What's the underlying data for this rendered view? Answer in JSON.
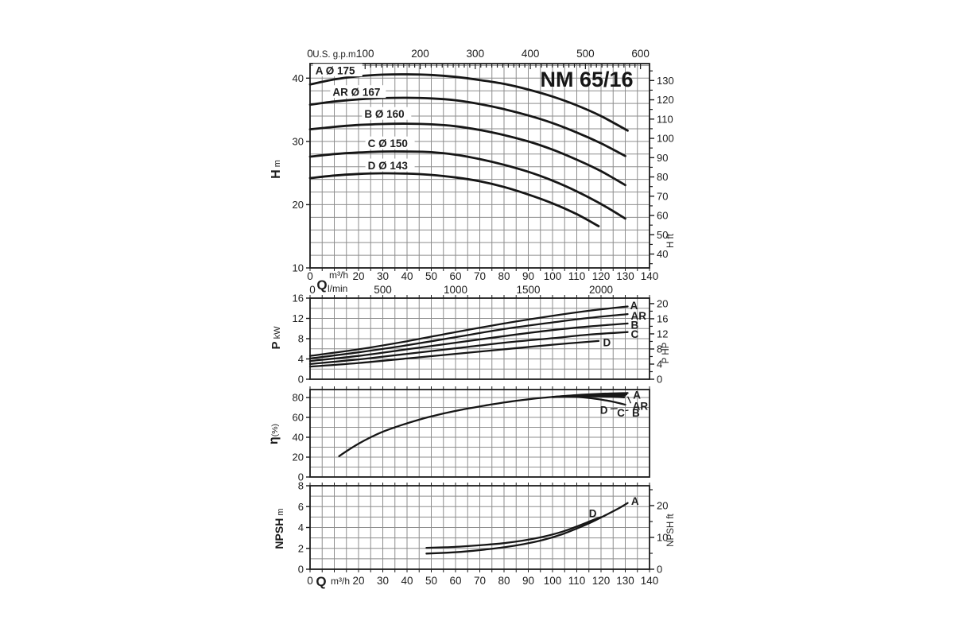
{
  "title": "NM 65/16",
  "colors": {
    "bg": "#ffffff",
    "grid": "#8d8d8d",
    "border": "#1c1c1c",
    "curve": "#161616",
    "text": "#1d1d1d"
  },
  "x_axis": {
    "bottom_label_q": "Q",
    "bottom_label_unit": "m³/h",
    "bottom_ticks": [
      0,
      20,
      30,
      40,
      50,
      60,
      70,
      80,
      90,
      100,
      110,
      120,
      130,
      140
    ],
    "lmin_label": "l/min",
    "lmin_ticks": [
      0,
      500,
      1000,
      1500,
      2000
    ],
    "lmin_to_m3h": 0.06,
    "xlim": [
      0,
      140
    ]
  },
  "chart_data": [
    {
      "id": "head",
      "type": "line",
      "title": "NM 65/16",
      "xlabel": "Q m³/h",
      "ylabel_parts": [
        [
          "H",
          16,
          true
        ],
        [
          " m",
          11,
          false
        ]
      ],
      "xlim": [
        0,
        140
      ],
      "ylim": [
        10,
        42.3
      ],
      "xgrid": 5,
      "ygrid": 2,
      "yticks": [
        10,
        20,
        30,
        40
      ],
      "lw": 2.8,
      "ticks_bottom": true,
      "top_axis": {
        "label": "U.S. g.p.m.",
        "ticks": [
          0,
          100,
          200,
          300,
          400,
          500,
          600
        ],
        "minor_step": 10,
        "max": 600,
        "factor": 0.227125
      },
      "right_axis": {
        "label": "H ft",
        "factor": 0.3048,
        "majors": [
          40,
          50,
          60,
          70,
          80,
          90,
          100,
          110,
          120,
          130
        ],
        "minors": [
          35,
          45,
          55,
          65,
          75,
          85,
          95,
          105,
          115,
          125,
          135
        ]
      },
      "series": [
        {
          "name": "A",
          "points": [
            [
              0,
              39.0
            ],
            [
              10,
              39.8
            ],
            [
              20,
              40.3
            ],
            [
              30,
              40.55
            ],
            [
              40,
              40.6
            ],
            [
              50,
              40.5
            ],
            [
              60,
              40.2
            ],
            [
              70,
              39.7
            ],
            [
              80,
              39.1
            ],
            [
              90,
              38.2
            ],
            [
              100,
              37.1
            ],
            [
              110,
              35.7
            ],
            [
              120,
              34.0
            ],
            [
              131,
              31.7
            ]
          ]
        },
        {
          "name": "AR",
          "points": [
            [
              0,
              35.8
            ],
            [
              10,
              36.3
            ],
            [
              20,
              36.65
            ],
            [
              30,
              36.85
            ],
            [
              40,
              36.9
            ],
            [
              50,
              36.8
            ],
            [
              60,
              36.5
            ],
            [
              70,
              35.9
            ],
            [
              80,
              35.1
            ],
            [
              90,
              34.1
            ],
            [
              100,
              32.9
            ],
            [
              110,
              31.4
            ],
            [
              120,
              29.7
            ],
            [
              130,
              27.7
            ]
          ]
        },
        {
          "name": "B",
          "points": [
            [
              0,
              31.9
            ],
            [
              10,
              32.3
            ],
            [
              20,
              32.6
            ],
            [
              30,
              32.75
            ],
            [
              40,
              32.8
            ],
            [
              50,
              32.7
            ],
            [
              60,
              32.4
            ],
            [
              70,
              31.8
            ],
            [
              80,
              31.0
            ],
            [
              90,
              30.0
            ],
            [
              100,
              28.7
            ],
            [
              110,
              27.1
            ],
            [
              120,
              25.3
            ],
            [
              130,
              23.1
            ]
          ]
        },
        {
          "name": "C",
          "points": [
            [
              0,
              27.6
            ],
            [
              10,
              28.0
            ],
            [
              20,
              28.25
            ],
            [
              30,
              28.4
            ],
            [
              40,
              28.4
            ],
            [
              50,
              28.3
            ],
            [
              60,
              27.9
            ],
            [
              70,
              27.2
            ],
            [
              80,
              26.3
            ],
            [
              90,
              25.2
            ],
            [
              100,
              23.8
            ],
            [
              110,
              22.1
            ],
            [
              120,
              20.1
            ],
            [
              130,
              17.8
            ]
          ]
        },
        {
          "name": "D",
          "points": [
            [
              0,
              24.2
            ],
            [
              10,
              24.6
            ],
            [
              20,
              24.85
            ],
            [
              30,
              24.95
            ],
            [
              40,
              24.9
            ],
            [
              50,
              24.7
            ],
            [
              60,
              24.3
            ],
            [
              70,
              23.7
            ],
            [
              80,
              22.8
            ],
            [
              90,
              21.6
            ],
            [
              100,
              20.2
            ],
            [
              110,
              18.5
            ],
            [
              119,
              16.6
            ]
          ]
        }
      ],
      "annotations": [
        {
          "text": "A Ø 175",
          "q": 2.2,
          "v": 41.15,
          "bg": true,
          "w": 62
        },
        {
          "text": "AR Ø 167",
          "q": 9.3,
          "v": 37.75,
          "bg": true,
          "w": 70
        },
        {
          "text": "B Ø 160",
          "q": 22.4,
          "v": 34.3,
          "bg": true,
          "w": 62
        },
        {
          "text": "C Ø 150",
          "q": 23.8,
          "v": 29.65,
          "bg": true,
          "w": 62
        },
        {
          "text": "D Ø 143",
          "q": 23.8,
          "v": 26.15,
          "bg": true,
          "w": 62
        }
      ]
    },
    {
      "id": "power",
      "type": "line",
      "ylabel_parts": [
        [
          "P",
          15,
          true
        ],
        [
          " kW",
          11,
          false
        ]
      ],
      "xlim": [
        0,
        140
      ],
      "ylim": [
        0,
        16
      ],
      "xgrid": 5,
      "ygrid": 2,
      "yticks": [
        0,
        4,
        8,
        12,
        16
      ],
      "lw": 2.3,
      "ticks_top": true,
      "right_axis": {
        "label": "P HP",
        "factor": 0.7457,
        "majors": [
          0,
          4,
          8,
          12,
          16,
          20
        ],
        "minors": [
          2,
          6,
          10,
          14,
          18
        ]
      },
      "series": [
        {
          "name": "A",
          "points": [
            [
              0,
              4.6
            ],
            [
              20,
              5.9
            ],
            [
              40,
              7.5
            ],
            [
              60,
              9.3
            ],
            [
              80,
              11.0
            ],
            [
              100,
              12.5
            ],
            [
              115,
              13.5
            ],
            [
              131,
              14.35
            ]
          ]
        },
        {
          "name": "AR",
          "points": [
            [
              0,
              4.1
            ],
            [
              20,
              5.3
            ],
            [
              40,
              6.7
            ],
            [
              60,
              8.3
            ],
            [
              80,
              9.9
            ],
            [
              100,
              11.2
            ],
            [
              115,
              12.1
            ],
            [
              131,
              12.85
            ]
          ]
        },
        {
          "name": "B",
          "points": [
            [
              0,
              3.6
            ],
            [
              20,
              4.6
            ],
            [
              40,
              5.9
            ],
            [
              60,
              7.2
            ],
            [
              80,
              8.5
            ],
            [
              100,
              9.7
            ],
            [
              115,
              10.4
            ],
            [
              131,
              11.0
            ]
          ]
        },
        {
          "name": "C",
          "points": [
            [
              0,
              3.0
            ],
            [
              20,
              3.9
            ],
            [
              40,
              5.0
            ],
            [
              60,
              6.1
            ],
            [
              80,
              7.2
            ],
            [
              100,
              8.1
            ],
            [
              115,
              8.8
            ],
            [
              131,
              9.3
            ]
          ]
        },
        {
          "name": "D",
          "points": [
            [
              0,
              2.5
            ],
            [
              20,
              3.2
            ],
            [
              40,
              4.1
            ],
            [
              60,
              5.0
            ],
            [
              80,
              5.9
            ],
            [
              100,
              6.8
            ],
            [
              119,
              7.55
            ]
          ]
        }
      ],
      "annotations": [
        {
          "text": "A",
          "q": 132.0,
          "v": 14.5
        },
        {
          "text": "AR",
          "q": 132.3,
          "v": 12.45
        },
        {
          "text": "B",
          "q": 132.3,
          "v": 10.7
        },
        {
          "text": "C",
          "q": 132.3,
          "v": 8.85
        },
        {
          "text": "D",
          "q": 120.8,
          "v": 7.25
        }
      ]
    },
    {
      "id": "eff",
      "type": "line",
      "ylabel_parts": [
        [
          "η",
          16,
          true
        ],
        [
          "(%)",
          10.5,
          false
        ]
      ],
      "xlim": [
        0,
        140
      ],
      "ylim": [
        0,
        88
      ],
      "xgrid": 5,
      "ygrid": 10,
      "yticks": [
        0,
        20,
        40,
        60,
        80
      ],
      "lw": 2.3,
      "ticks_top": true,
      "series": [
        {
          "name": "main",
          "points": [
            [
              12,
              21
            ],
            [
              16,
              27.5
            ],
            [
              20,
              33.5
            ],
            [
              25,
              40
            ],
            [
              30,
              45.5
            ],
            [
              35,
              50
            ],
            [
              40,
              54
            ],
            [
              45,
              57.7
            ],
            [
              50,
              61
            ],
            [
              55,
              63.9
            ],
            [
              60,
              66.5
            ],
            [
              65,
              68.9
            ],
            [
              70,
              71
            ],
            [
              75,
              73.1
            ],
            [
              80,
              75
            ],
            [
              85,
              76.7
            ],
            [
              90,
              78.2
            ],
            [
              95,
              79.5
            ],
            [
              100,
              80.6
            ]
          ]
        },
        {
          "name": "A",
          "points": [
            [
              100,
              80.6
            ],
            [
              108,
              82.1
            ],
            [
              116,
              83.3
            ],
            [
              124,
              84.1
            ],
            [
              131,
              84.5
            ]
          ]
        },
        {
          "name": "AR",
          "points": [
            [
              100,
              80.6
            ],
            [
              108,
              81.9
            ],
            [
              116,
              82.8
            ],
            [
              124,
              83.2
            ],
            [
              130.5,
              83.2
            ]
          ]
        },
        {
          "name": "B",
          "points": [
            [
              100,
              80.5
            ],
            [
              108,
              81.6
            ],
            [
              116,
              82.2
            ],
            [
              124,
              82.2
            ],
            [
              130,
              81.9
            ]
          ]
        },
        {
          "name": "C",
          "points": [
            [
              100,
              80.4
            ],
            [
              106,
              81.0
            ],
            [
              112,
              81.3
            ],
            [
              118,
              81.2
            ],
            [
              124,
              80.8
            ],
            [
              129.5,
              80.2
            ]
          ]
        },
        {
          "name": "D",
          "points": [
            [
              100,
              80.3
            ],
            [
              105,
              80.7
            ],
            [
              110,
              80.5
            ],
            [
              115,
              79.5
            ],
            [
              120,
              77.9
            ],
            [
              125,
              75.7
            ],
            [
              130,
              72.8
            ]
          ]
        }
      ],
      "leaders": [
        [
          123.9,
          68.6,
          126.8,
          68.9
        ],
        [
          130.1,
          66.8,
          131.3,
          67.2
        ],
        [
          131.0,
          81.0,
          132.3,
          74.2
        ]
      ],
      "annotations": [
        {
          "text": "A",
          "q": 133.2,
          "v": 82.3
        },
        {
          "text": "AR",
          "q": 133.0,
          "v": 71.3
        },
        {
          "text": "B",
          "q": 132.8,
          "v": 64.3
        },
        {
          "text": "C",
          "q": 126.6,
          "v": 64.3
        },
        {
          "text": "D",
          "q": 119.6,
          "v": 67.3
        }
      ]
    },
    {
      "id": "npsh",
      "type": "line",
      "ylabel_parts": [
        [
          "NPSH",
          14,
          true
        ],
        [
          " m",
          11,
          false
        ]
      ],
      "xlim": [
        0,
        140
      ],
      "ylim": [
        0,
        8
      ],
      "xgrid": 5,
      "ygrid": 1,
      "yticks": [
        0,
        2,
        4,
        6,
        8
      ],
      "lw": 2.3,
      "ticks_top": true,
      "ticks_bottom": true,
      "right_axis": {
        "label": "NPSH ft",
        "factor": 0.3048,
        "majors": [
          0,
          10,
          20
        ],
        "minors": [
          5,
          15,
          25
        ]
      },
      "series": [
        {
          "name": "A",
          "points": [
            [
              48,
              1.5
            ],
            [
              56,
              1.58
            ],
            [
              64,
              1.7
            ],
            [
              72,
              1.88
            ],
            [
              80,
              2.1
            ],
            [
              88,
              2.4
            ],
            [
              96,
              2.8
            ],
            [
              104,
              3.35
            ],
            [
              110,
              3.9
            ],
            [
              116,
              4.5
            ],
            [
              122,
              5.2
            ],
            [
              127,
              5.8
            ],
            [
              131,
              6.35
            ]
          ]
        },
        {
          "name": "D",
          "points": [
            [
              48,
              2.05
            ],
            [
              56,
              2.1
            ],
            [
              64,
              2.2
            ],
            [
              72,
              2.33
            ],
            [
              80,
              2.5
            ],
            [
              88,
              2.75
            ],
            [
              96,
              3.1
            ],
            [
              104,
              3.6
            ],
            [
              110,
              4.1
            ],
            [
              116,
              4.65
            ],
            [
              120,
              5.0
            ]
          ]
        }
      ],
      "annotations": [
        {
          "text": "A",
          "q": 132.4,
          "v": 6.5
        },
        {
          "text": "D",
          "q": 115.0,
          "v": 5.35
        }
      ]
    }
  ]
}
